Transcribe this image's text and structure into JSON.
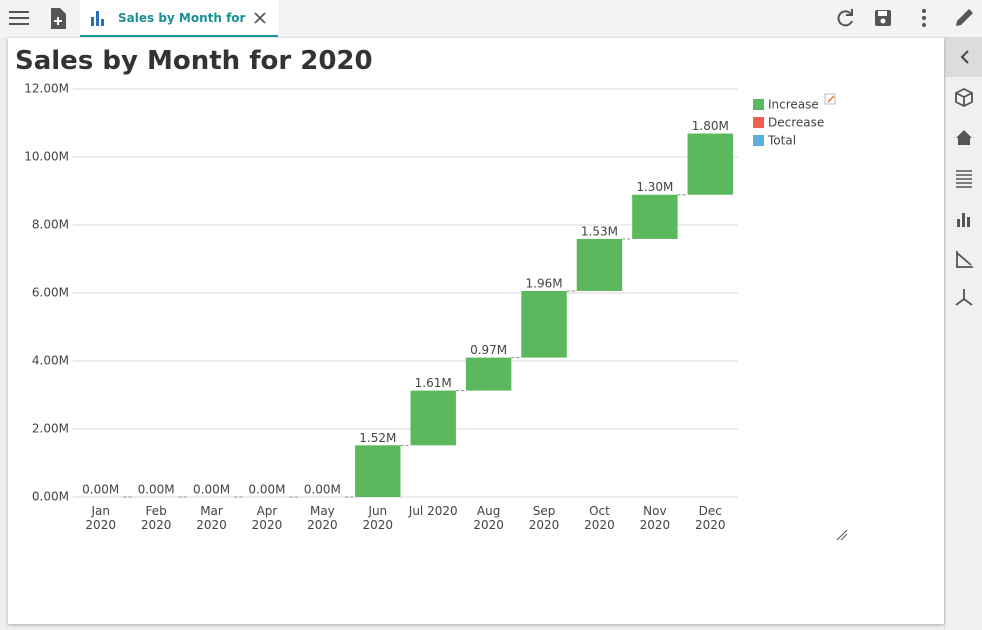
{
  "toolbar": {
    "tab_title": "Sales by Month for 2020"
  },
  "chart_data": {
    "type": "waterfall",
    "title": "Sales by Month for 2020",
    "categories": [
      "Jan\n2020",
      "Feb\n2020",
      "Mar\n2020",
      "Apr\n2020",
      "May\n2020",
      "Jun\n2020",
      "Jul 2020",
      "Aug\n2020",
      "Sep\n2020",
      "Oct\n2020",
      "Nov\n2020",
      "Dec\n2020"
    ],
    "values": [
      0,
      0,
      0,
      0,
      0,
      1.52,
      1.61,
      0.97,
      1.96,
      1.53,
      1.3,
      1.8
    ],
    "value_labels": [
      "0.00M",
      "0.00M",
      "0.00M",
      "0.00M",
      "0.00M",
      "1.52M",
      "1.61M",
      "0.97M",
      "1.96M",
      "1.53M",
      "1.30M",
      "1.80M"
    ],
    "color": "#5cb85c",
    "legend": [
      {
        "name": "Increase",
        "color": "#5cb85c"
      },
      {
        "name": "Decrease",
        "color": "#ef6050"
      },
      {
        "name": "Total",
        "color": "#5aafe0"
      }
    ],
    "ylim": [
      0,
      12
    ],
    "yticks": [
      {
        "value": 0,
        "label": "0.00M"
      },
      {
        "value": 2,
        "label": "2.00M"
      },
      {
        "value": 4,
        "label": "4.00M"
      },
      {
        "value": 6,
        "label": "6.00M"
      },
      {
        "value": 8,
        "label": "8.00M"
      },
      {
        "value": 10,
        "label": "10.00M"
      },
      {
        "value": 12,
        "label": "12.00M"
      }
    ],
    "grid": true
  }
}
